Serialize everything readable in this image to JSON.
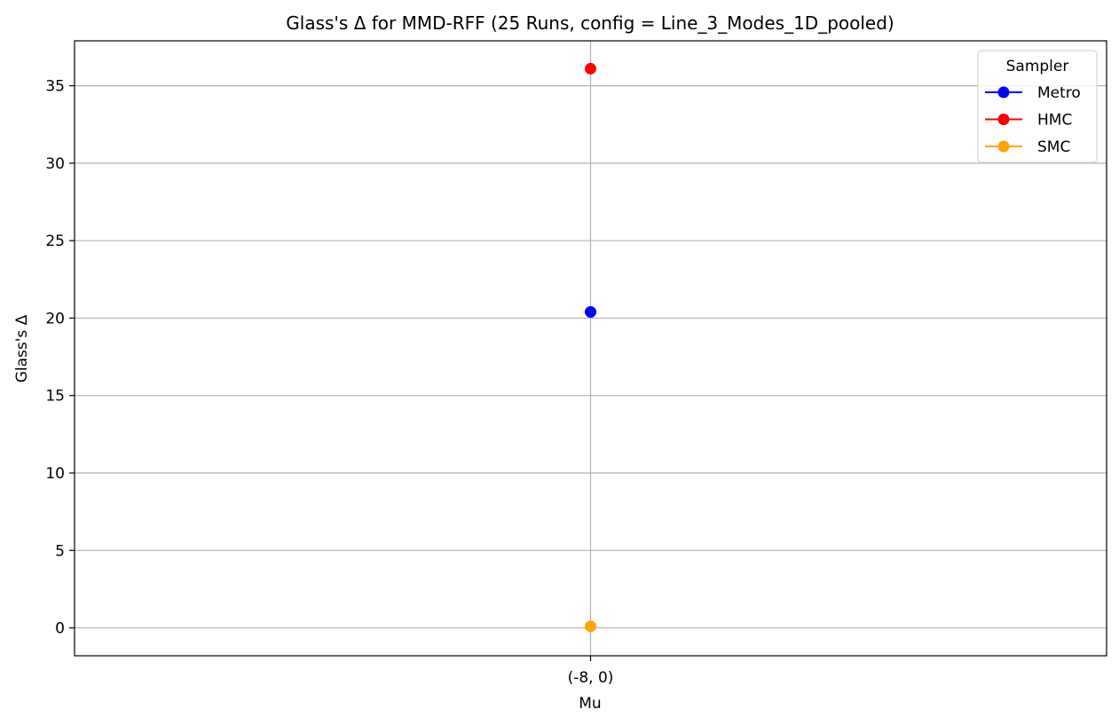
{
  "chart_data": {
    "type": "line",
    "title": "Glass's Δ for MMD-RFF (25 Runs, config = Line_3_Modes_1D_pooled)",
    "xlabel": "Mu",
    "ylabel": "Glass's Δ",
    "categories": [
      "(-8, 0)"
    ],
    "yticks": [
      0,
      5,
      10,
      15,
      20,
      25,
      30,
      35
    ],
    "ylim": [
      -1.8,
      37.9
    ],
    "grid": true,
    "legend": {
      "title": "Sampler",
      "placement": "top-right"
    },
    "series": [
      {
        "name": "Metro",
        "color": "#0000ff",
        "values": [
          20.4
        ]
      },
      {
        "name": "HMC",
        "color": "#ff0000",
        "values": [
          36.1
        ]
      },
      {
        "name": "SMC",
        "color": "#ffa500",
        "values": [
          0.1
        ]
      }
    ]
  }
}
